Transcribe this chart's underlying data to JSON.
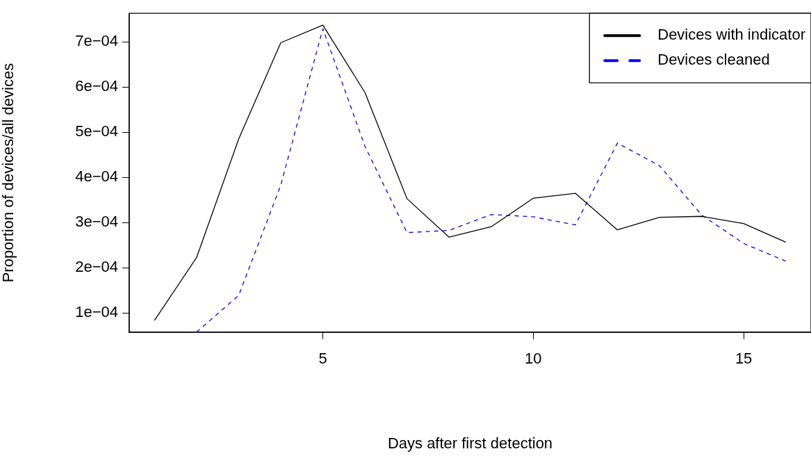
{
  "chart_data": {
    "type": "line",
    "xlabel": "Days after first detection",
    "ylabel": "Proportion of devices/all devices",
    "x": [
      1,
      2,
      3,
      4,
      5,
      6,
      7,
      8,
      9,
      10,
      11,
      12,
      13,
      14,
      15,
      16
    ],
    "xlim": [
      0.4,
      16.6
    ],
    "xticks": [
      5,
      10,
      15
    ],
    "ylim": [
      5.76e-05,
      0.000763
    ],
    "yticks": [
      {
        "value": 0.0001,
        "label": "1e−04"
      },
      {
        "value": 0.0002,
        "label": "2e−04"
      },
      {
        "value": 0.0003,
        "label": "3e−04"
      },
      {
        "value": 0.0004,
        "label": "4e−04"
      },
      {
        "value": 0.0005,
        "label": "5e−04"
      },
      {
        "value": 0.0006,
        "label": "6e−04"
      },
      {
        "value": 0.0007,
        "label": "7e−04"
      }
    ],
    "series": [
      {
        "name": "Devices with indicator",
        "color": "#000000",
        "line_style": "solid",
        "values": [
          8.4e-05,
          0.000223,
          0.000485,
          0.000698,
          0.000737,
          0.000588,
          0.000353,
          0.000268,
          0.000291,
          0.000354,
          0.000365,
          0.000284,
          0.000312,
          0.000314,
          0.000298,
          0.000257
        ]
      },
      {
        "name": "Devices cleaned",
        "color": "#0000ff",
        "line_style": "dashed",
        "values": [
          null,
          5.8e-05,
          0.000139,
          0.000383,
          0.000729,
          0.000469,
          0.000278,
          0.000283,
          0.000318,
          0.000313,
          0.000295,
          0.000476,
          0.000426,
          0.000317,
          0.000254,
          0.000215
        ]
      }
    ],
    "grid": false,
    "legend": "top right",
    "marker": "none"
  }
}
